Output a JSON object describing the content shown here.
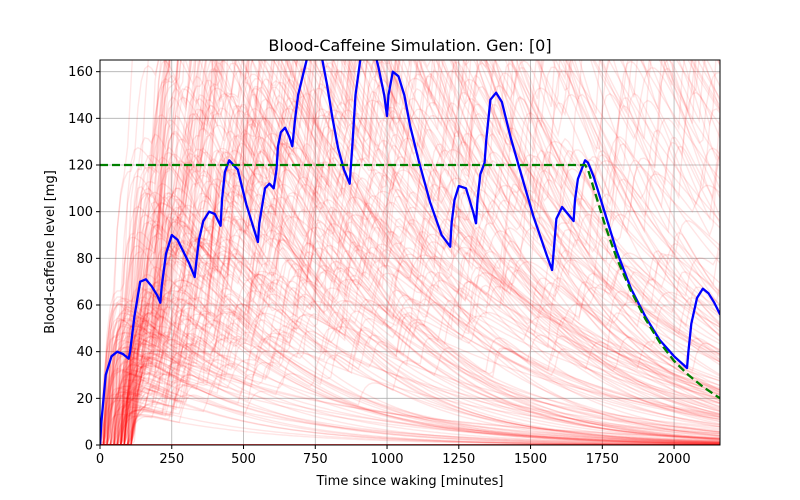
{
  "chart_data": {
    "type": "line",
    "title": "Blood-Caffeine Simulation. Gen: [0]",
    "xlabel": "Time since waking [minutes]",
    "ylabel": "Blood-caffeine level [mg]",
    "xlim": [
      0,
      2160
    ],
    "ylim": [
      0,
      165
    ],
    "x_ticks": [
      0,
      250,
      500,
      750,
      1000,
      1250,
      1500,
      1750,
      2000
    ],
    "y_ticks": [
      0,
      20,
      40,
      60,
      80,
      100,
      120,
      140,
      160
    ],
    "grid": true,
    "legend": "none",
    "colors": {
      "best": "#0000ff",
      "target": "#008000",
      "population": "#ff0000"
    },
    "series": [
      {
        "role": "best",
        "style": "solid",
        "x": [
          0,
          5,
          20,
          40,
          60,
          80,
          100,
          105,
          120,
          140,
          160,
          180,
          200,
          210,
          215,
          230,
          250,
          270,
          290,
          310,
          330,
          335,
          345,
          360,
          380,
          400,
          420,
          425,
          435,
          450,
          480,
          510,
          550,
          555,
          575,
          590,
          605,
          615,
          620,
          630,
          645,
          660,
          670,
          680,
          690,
          710,
          730,
          750,
          770,
          790,
          810,
          830,
          850,
          870,
          880,
          890,
          910,
          930,
          950,
          970,
          990,
          1000,
          1005,
          1020,
          1040,
          1060,
          1080,
          1110,
          1150,
          1190,
          1220,
          1225,
          1235,
          1250,
          1275,
          1300,
          1310,
          1315,
          1325,
          1340,
          1345,
          1360,
          1380,
          1400,
          1430,
          1470,
          1510,
          1560,
          1575,
          1580,
          1590,
          1610,
          1630,
          1650,
          1655,
          1665,
          1690,
          1700,
          1720,
          1760,
          1800,
          1850,
          1900,
          1950,
          2000,
          2045,
          2050,
          2060,
          2080,
          2100,
          2120,
          2140,
          2160
        ],
        "y": [
          0,
          10,
          30,
          38,
          40,
          39,
          37,
          40,
          55,
          70,
          71,
          68,
          64,
          61,
          68,
          82,
          90,
          88,
          83,
          78,
          72,
          78,
          88,
          96,
          100,
          99,
          94,
          105,
          117,
          122,
          118,
          103,
          87,
          95,
          110,
          112,
          110,
          118,
          128,
          134,
          136,
          132,
          128,
          140,
          150,
          160,
          170,
          175,
          168,
          155,
          140,
          127,
          118,
          112,
          130,
          150,
          168,
          176,
          172,
          162,
          150,
          141,
          150,
          160,
          158,
          150,
          137,
          122,
          104,
          90,
          85,
          95,
          105,
          111,
          110,
          100,
          95,
          105,
          116,
          121,
          130,
          148,
          151,
          147,
          132,
          115,
          98,
          80,
          75,
          82,
          97,
          102,
          99,
          96,
          105,
          114,
          122,
          121,
          115,
          99,
          83,
          67,
          55,
          45,
          38,
          33,
          40,
          52,
          63,
          67,
          65,
          61,
          56
        ]
      },
      {
        "role": "target",
        "style": "dashed",
        "x": [
          0,
          1690,
          1700,
          1720,
          1760,
          1800,
          1850,
          1900,
          1950,
          2000,
          2050,
          2100,
          2160
        ],
        "y": [
          120,
          120,
          118,
          110,
          94,
          80,
          66,
          54,
          44,
          36,
          30,
          25,
          20
        ]
      }
    ]
  }
}
